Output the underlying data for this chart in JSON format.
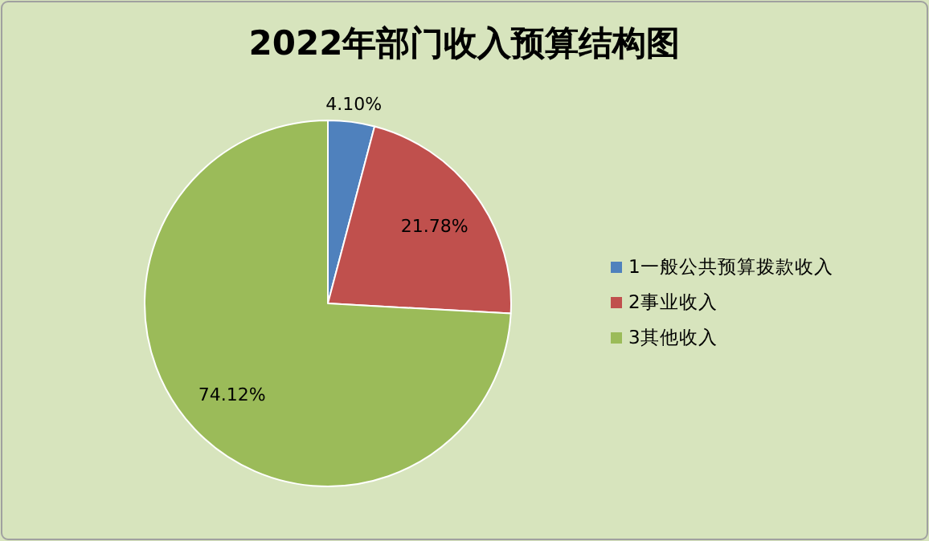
{
  "chart_data": {
    "type": "pie",
    "title": "2022年部门收入预算结构图",
    "categories": [
      "1一般公共预算拨款收入",
      "2事业收入",
      "3其他收入"
    ],
    "values": [
      4.1,
      21.78,
      74.12
    ],
    "colors": [
      "#4f81bd",
      "#c0504d",
      "#9bbb59"
    ],
    "value_labels": [
      "4.10%",
      "21.78%",
      "74.12%"
    ],
    "legend": "right"
  }
}
